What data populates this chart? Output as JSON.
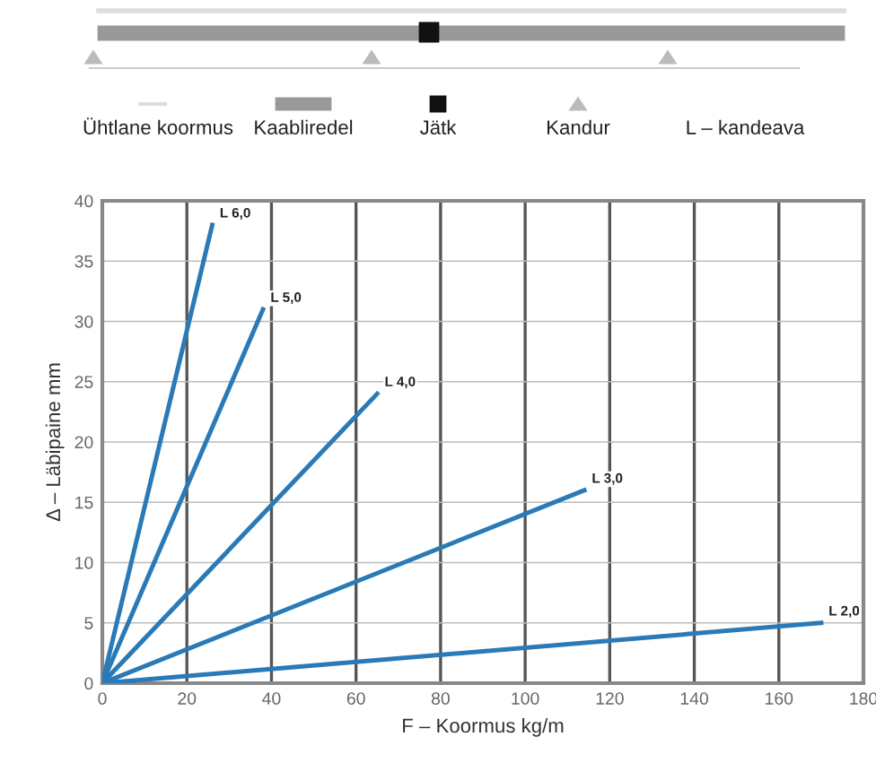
{
  "chart_data": {
    "type": "line",
    "xlabel": "F – Koormus kg/m",
    "ylabel": "Δ – Läbipaine mm",
    "xlim": [
      0,
      180
    ],
    "xticks": [
      0,
      20,
      40,
      60,
      80,
      100,
      120,
      140,
      160,
      180
    ],
    "ylim": [
      0,
      40
    ],
    "yticks": [
      0,
      5,
      10,
      15,
      20,
      25,
      30,
      35,
      40
    ],
    "grid": true,
    "marker": "none",
    "line_style": "solid",
    "series": [
      {
        "x": [
          0,
          26
        ],
        "values": [
          0,
          38
        ],
        "color": "#2a7ab8"
      },
      {
        "x": [
          0,
          38
        ],
        "values": [
          0,
          31
        ],
        "color": "#2a7ab8"
      },
      {
        "x": [
          0,
          65
        ],
        "values": [
          0,
          24
        ],
        "color": "#2a7ab8"
      },
      {
        "x": [
          0,
          114
        ],
        "values": [
          0,
          16
        ],
        "color": "#2a7ab8"
      },
      {
        "x": [
          0,
          170
        ],
        "values": [
          0,
          5
        ],
        "color": "#2a7ab8"
      }
    ],
    "annotations": [
      {
        "text": "L 6,0",
        "x": 26,
        "y": 38
      },
      {
        "text": "L 5,0",
        "x": 38,
        "y": 31
      },
      {
        "text": "L 4,0",
        "x": 65,
        "y": 24
      },
      {
        "text": "L 3,0",
        "x": 114,
        "y": 16
      },
      {
        "text": "L 2,0",
        "x": 170,
        "y": 5
      },
      "Ühtlane koormus",
      "Kaabliredel",
      "Jätk",
      "Kandur",
      "L – kandeava"
    ]
  }
}
